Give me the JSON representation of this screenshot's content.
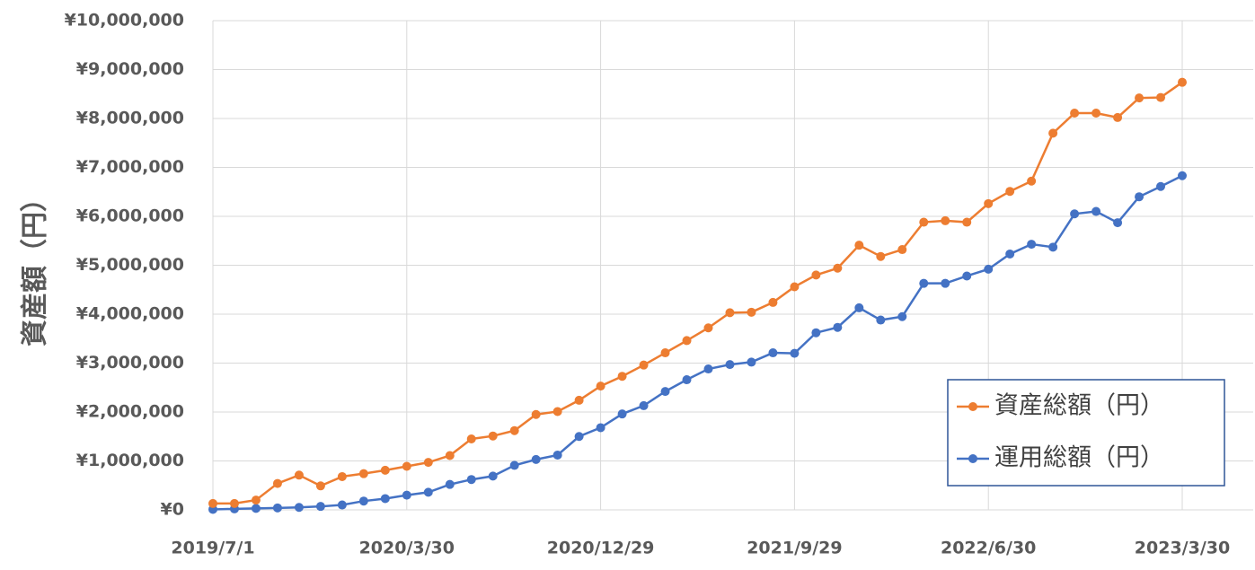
{
  "chart_data": {
    "type": "line",
    "y_label": "資産額（円）",
    "categories": [
      "2019/7/1",
      null,
      null,
      null,
      null,
      null,
      null,
      null,
      null,
      "2020/3/30",
      null,
      null,
      null,
      null,
      null,
      null,
      null,
      null,
      "2020/12/29",
      null,
      null,
      null,
      null,
      null,
      null,
      null,
      null,
      "2021/9/29",
      null,
      null,
      null,
      null,
      null,
      null,
      null,
      null,
      "2022/6/30",
      null,
      null,
      null,
      null,
      null,
      null,
      null,
      null,
      "2023/3/30"
    ],
    "series": [
      {
        "name": "資産総額（円）",
        "color": "#ed7d31",
        "values": [
          130000,
          130000,
          200000,
          540000,
          710000,
          490000,
          680000,
          740000,
          810000,
          890000,
          970000,
          1110000,
          1450000,
          1510000,
          1620000,
          1950000,
          2010000,
          2240000,
          2530000,
          2730000,
          2960000,
          3210000,
          3460000,
          3720000,
          4030000,
          4040000,
          4240000,
          4560000,
          4800000,
          4940000,
          5410000,
          5180000,
          5320000,
          5880000,
          5910000,
          5880000,
          6260000,
          6510000,
          6720000,
          7700000,
          8110000,
          8110000,
          8020000,
          8420000,
          8430000,
          8740000
        ]
      },
      {
        "name": "運用総額（円）",
        "color": "#4472c4",
        "values": [
          10000,
          20000,
          30000,
          40000,
          50000,
          70000,
          100000,
          180000,
          230000,
          300000,
          360000,
          520000,
          620000,
          690000,
          910000,
          1030000,
          1120000,
          1500000,
          1680000,
          1960000,
          2130000,
          2420000,
          2660000,
          2880000,
          2970000,
          3020000,
          3210000,
          3200000,
          3620000,
          3730000,
          4130000,
          3880000,
          3950000,
          4630000,
          4630000,
          4780000,
          4920000,
          5230000,
          5430000,
          5370000,
          6050000,
          6100000,
          5870000,
          6400000,
          6610000,
          6830000
        ]
      }
    ],
    "ylim": [
      0,
      10000000
    ],
    "yticks": [
      {
        "value": 0,
        "label": "¥0"
      },
      {
        "value": 1000000,
        "label": "¥1,000,000"
      },
      {
        "value": 2000000,
        "label": "¥2,000,000"
      },
      {
        "value": 3000000,
        "label": "¥3,000,000"
      },
      {
        "value": 4000000,
        "label": "¥4,000,000"
      },
      {
        "value": 5000000,
        "label": "¥5,000,000"
      },
      {
        "value": 6000000,
        "label": "¥6,000,000"
      },
      {
        "value": 7000000,
        "label": "¥7,000,000"
      },
      {
        "value": 8000000,
        "label": "¥8,000,000"
      },
      {
        "value": 9000000,
        "label": "¥9,000,000"
      },
      {
        "value": 10000000,
        "label": "¥10,000,000"
      }
    ],
    "grid": true,
    "legend": "lower right"
  }
}
